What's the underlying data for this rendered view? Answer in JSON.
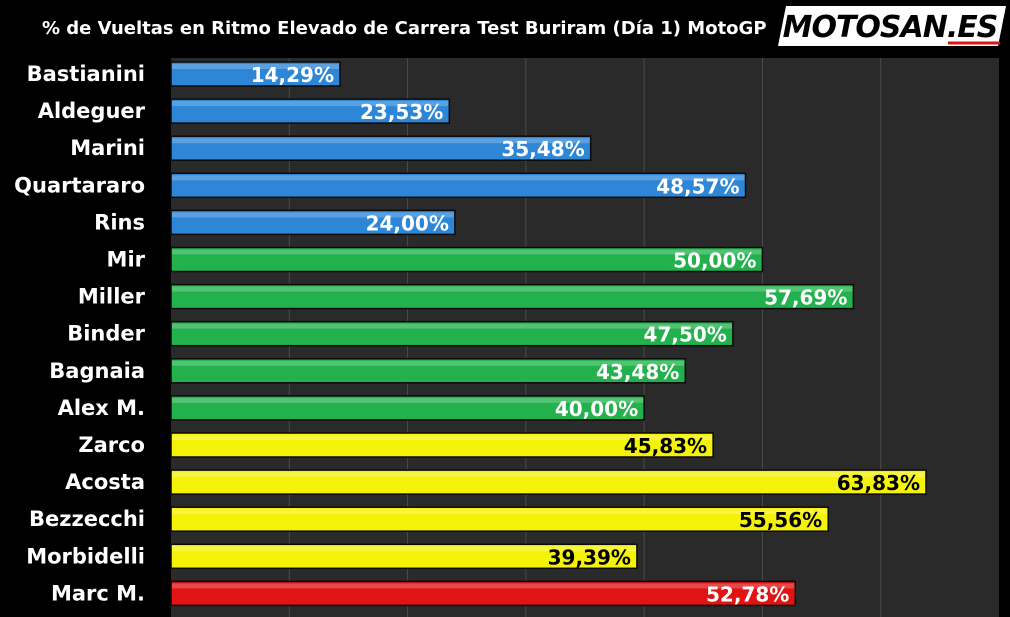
{
  "chart_data": {
    "type": "bar",
    "orientation": "horizontal",
    "title": "% de Vueltas en Ritmo Elevado de Carrera Test Buriram (Día 1) MotoGP",
    "categories": [
      "Bastianini",
      "Aldeguer",
      "Marini",
      "Quartararo",
      "Rins",
      "Mir",
      "Miller",
      "Binder",
      "Bagnaia",
      "Alex M.",
      "Zarco",
      "Acosta",
      "Bezzecchi",
      "Morbidelli",
      "Marc M."
    ],
    "values": [
      14.29,
      23.53,
      35.48,
      48.57,
      24.0,
      50.0,
      57.69,
      47.5,
      43.48,
      40.0,
      45.83,
      63.83,
      55.56,
      39.39,
      52.78
    ],
    "value_labels": [
      "14,29%",
      "23,53%",
      "35,48%",
      "48,57%",
      "24,00%",
      "50,00%",
      "57,69%",
      "47,50%",
      "43,48%",
      "40,00%",
      "45,83%",
      "63,83%",
      "55,56%",
      "39,39%",
      "52,78%"
    ],
    "bar_colors": [
      "#2e86d6",
      "#2e86d6",
      "#2e86d6",
      "#2e86d6",
      "#2e86d6",
      "#22b14c",
      "#22b14c",
      "#22b14c",
      "#22b14c",
      "#22b14c",
      "#f5f20a",
      "#f5f20a",
      "#f5f20a",
      "#f5f20a",
      "#e01414"
    ],
    "label_colors": [
      "#ffffff",
      "#ffffff",
      "#ffffff",
      "#ffffff",
      "#ffffff",
      "#ffffff",
      "#ffffff",
      "#ffffff",
      "#ffffff",
      "#ffffff",
      "#000000",
      "#000000",
      "#000000",
      "#000000",
      "#ffffff"
    ],
    "xlim": [
      0,
      70
    ],
    "grid": true,
    "plot_background": "#2a2a2a",
    "gridline_color": "#4a4a4a"
  },
  "logo": {
    "text": "MOTOSAN.ES",
    "background": "#ffffff",
    "text_color": "#000000",
    "accent": "#e01414"
  }
}
